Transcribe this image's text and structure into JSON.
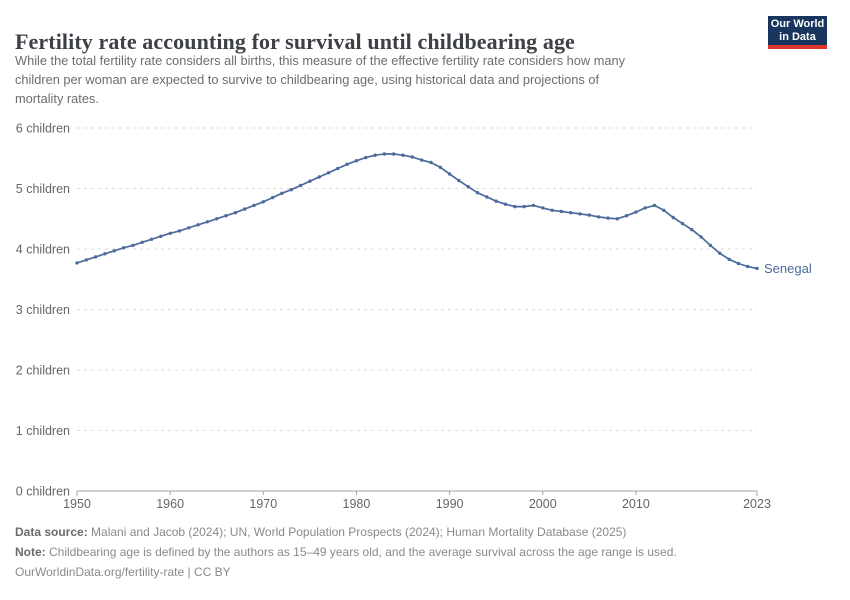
{
  "header": {
    "title": "Fertility rate accounting for survival until childbearing age",
    "subtitle_lines": [
      "While the total fertility rate considers all births, this measure of the effective fertility rate considers how many",
      "children per woman are expected to survive to childbearing age, using historical data and projections of",
      "mortality rates."
    ],
    "logo": {
      "line1": "Our World",
      "line2": "in Data",
      "bg_color": "#18355e",
      "accent_color": "#dd352e"
    }
  },
  "chart_data": {
    "type": "line",
    "title": "Fertility rate accounting for survival until childbearing age",
    "xlabel": "",
    "ylabel": "",
    "xlim": [
      1950,
      2023
    ],
    "ylim": [
      0,
      6
    ],
    "grid": "horizontal-dashed",
    "legend": "end-of-line-label",
    "xticks": [
      1950,
      1960,
      1970,
      1980,
      1990,
      2000,
      2010,
      2023
    ],
    "yticks": [
      {
        "value": 0,
        "label": "0 children"
      },
      {
        "value": 1,
        "label": "1 children"
      },
      {
        "value": 2,
        "label": "2 children"
      },
      {
        "value": 3,
        "label": "3 children"
      },
      {
        "value": 4,
        "label": "4 children"
      },
      {
        "value": 5,
        "label": "5 children"
      },
      {
        "value": 6,
        "label": "6 children"
      }
    ],
    "x": [
      1950,
      1951,
      1952,
      1953,
      1954,
      1955,
      1956,
      1957,
      1958,
      1959,
      1960,
      1961,
      1962,
      1963,
      1964,
      1965,
      1966,
      1967,
      1968,
      1969,
      1970,
      1971,
      1972,
      1973,
      1974,
      1975,
      1976,
      1977,
      1978,
      1979,
      1980,
      1981,
      1982,
      1983,
      1984,
      1985,
      1986,
      1987,
      1988,
      1989,
      1990,
      1991,
      1992,
      1993,
      1994,
      1995,
      1996,
      1997,
      1998,
      1999,
      2000,
      2001,
      2002,
      2003,
      2004,
      2005,
      2006,
      2007,
      2008,
      2009,
      2010,
      2011,
      2012,
      2013,
      2014,
      2015,
      2016,
      2017,
      2018,
      2019,
      2020,
      2021,
      2022,
      2023
    ],
    "series": [
      {
        "name": "Senegal",
        "color": "#4c6a9c",
        "values": [
          3.77,
          3.82,
          3.87,
          3.92,
          3.97,
          4.02,
          4.06,
          4.11,
          4.16,
          4.21,
          4.26,
          4.3,
          4.35,
          4.4,
          4.45,
          4.5,
          4.55,
          4.6,
          4.66,
          4.72,
          4.78,
          4.85,
          4.92,
          4.98,
          5.05,
          5.12,
          5.19,
          5.26,
          5.33,
          5.4,
          5.46,
          5.51,
          5.55,
          5.57,
          5.57,
          5.55,
          5.52,
          5.47,
          5.43,
          5.35,
          5.24,
          5.13,
          5.03,
          4.93,
          4.86,
          4.79,
          4.74,
          4.7,
          4.7,
          4.72,
          4.68,
          4.64,
          4.62,
          4.6,
          4.58,
          4.56,
          4.53,
          4.51,
          4.5,
          4.55,
          4.61,
          4.68,
          4.72,
          4.64,
          4.52,
          4.42,
          4.32,
          4.2,
          4.06,
          3.93,
          3.83,
          3.76,
          3.71,
          3.68
        ]
      }
    ]
  },
  "footer": {
    "data_source_label": "Data source:",
    "data_source_text": " Malani and Jacob (2024); UN, World Population Prospects (2024); Human Mortality Database (2025)",
    "note_label": "Note:",
    "note_text": " Childbearing age is defined by the authors as 15–49 years old, and the average survival across the age range is used.",
    "citation": "OurWorldinData.org/fertility-rate | CC BY"
  }
}
